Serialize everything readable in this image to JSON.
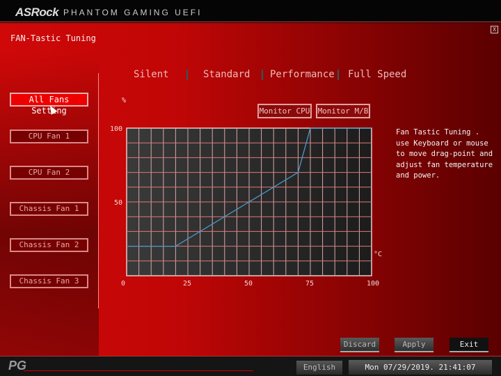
{
  "header": {
    "logo": "ASRock",
    "subtitle": "PHANTOM GAMING UEFI"
  },
  "page_title": "FAN-Tastic Tuning",
  "close_label": "X",
  "sidebar": {
    "items": [
      {
        "label": "All Fans Setting",
        "active": true
      },
      {
        "label": "CPU Fan 1"
      },
      {
        "label": "CPU Fan 2"
      },
      {
        "label": "Chassis Fan 1"
      },
      {
        "label": "Chassis Fan 2"
      },
      {
        "label": "Chassis Fan 3"
      }
    ]
  },
  "tabs": [
    "Silent",
    "Standard",
    "Performance",
    "Full Speed"
  ],
  "monitor": {
    "cpu": "Monitor CPU",
    "mb": "Monitor M/B"
  },
  "help_text": "Fan Tastic Tuning . use Keyboard or mouse to move drag-point and adjust fan temperature and power.",
  "chart_data": {
    "type": "line",
    "x": [
      0,
      20,
      70,
      75,
      100
    ],
    "y": [
      20,
      20,
      70,
      100,
      100
    ],
    "xlim": [
      0,
      100
    ],
    "ylim": [
      0,
      100
    ],
    "xticks": [
      "0",
      "25",
      "50",
      "75",
      "100"
    ],
    "yticks": [
      "0",
      "50",
      "100"
    ],
    "xlabel": "°C",
    "ylabel": "%",
    "grid": true,
    "line_color": "#4a9ac8"
  },
  "buttons": {
    "discard": "Discard",
    "apply": "Apply",
    "exit": "Exit"
  },
  "footer": {
    "logo": "PG",
    "language": "English",
    "datetime": "Mon 07/29/2019. 21:41:07"
  }
}
